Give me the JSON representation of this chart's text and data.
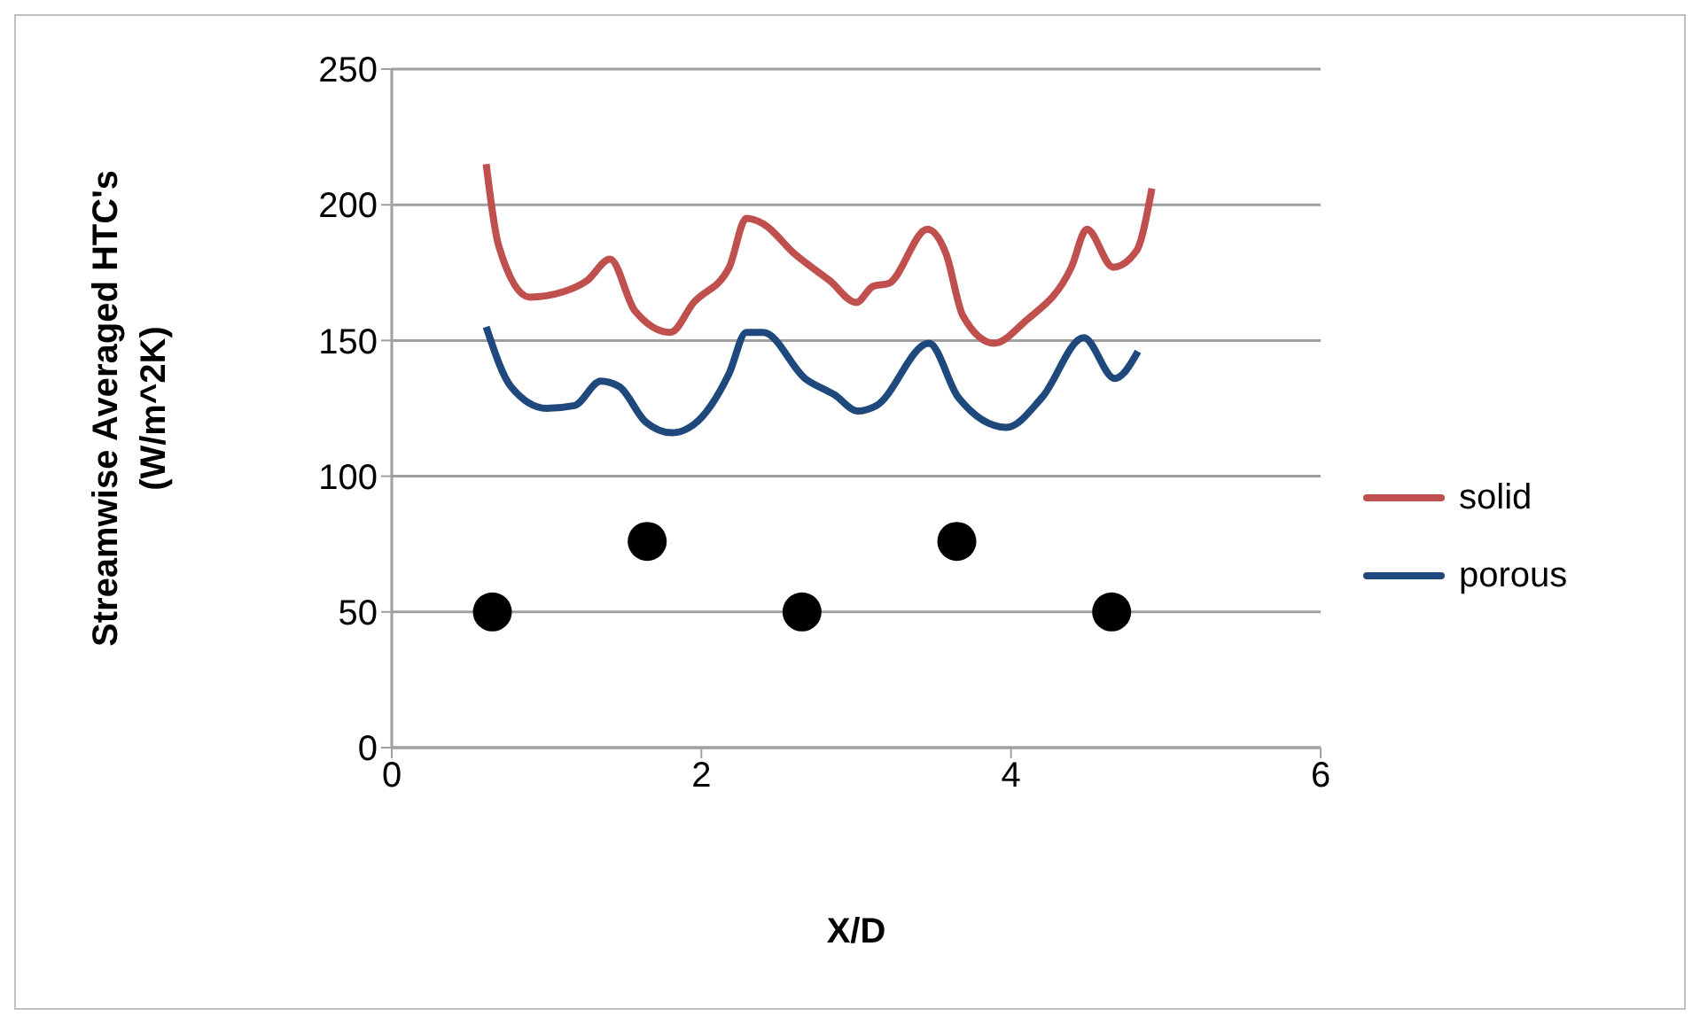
{
  "chart_data": {
    "type": "line",
    "xlabel": "X/D",
    "ylabel": "Streamwise Averaged HTC's (W/m^2K)",
    "xlim": [
      0,
      6
    ],
    "xticks": [
      0,
      2,
      4,
      6
    ],
    "ylim": [
      0,
      250
    ],
    "yticks": [
      0,
      50,
      100,
      150,
      200,
      250
    ],
    "grid": "y",
    "legend": "right",
    "marker": "none",
    "line_style": "solid",
    "series": [
      {
        "name": "solid",
        "color": "#c0504d",
        "x": [
          0.61,
          0.69,
          0.89,
          1.11,
          1.26,
          1.41,
          1.57,
          1.8,
          1.95,
          2.18,
          2.29,
          2.4,
          2.6,
          2.83,
          3.0,
          3.11,
          3.21,
          3.46,
          3.58,
          3.69,
          3.89,
          4.09,
          4.39,
          4.49,
          4.66,
          4.81,
          4.91
        ],
        "values": [
          215,
          185,
          166,
          168,
          172,
          180,
          161,
          153,
          164,
          177,
          195,
          193,
          182,
          172,
          164,
          170,
          171,
          191,
          182,
          159,
          149,
          157,
          177,
          191,
          177,
          183,
          206
        ]
      },
      {
        "name": "porous",
        "color": "#1f497d",
        "x": [
          0.61,
          0.77,
          1.0,
          1.18,
          1.35,
          1.47,
          1.64,
          1.81,
          1.95,
          2.18,
          2.29,
          2.4,
          2.67,
          2.86,
          3.01,
          3.13,
          3.47,
          3.66,
          3.97,
          4.2,
          4.47,
          4.67,
          4.82
        ],
        "values": [
          155,
          133,
          125,
          126,
          135,
          133,
          120,
          116,
          119,
          138,
          153,
          153,
          136,
          130,
          124,
          126,
          149,
          129,
          118,
          129,
          151,
          136,
          146
        ]
      },
      {
        "type": "scatter",
        "color": "#000000",
        "marker": "circle",
        "x": [
          0.65,
          1.65,
          2.65,
          3.65,
          4.65
        ],
        "values": [
          50,
          76,
          50,
          76,
          50
        ]
      }
    ]
  }
}
